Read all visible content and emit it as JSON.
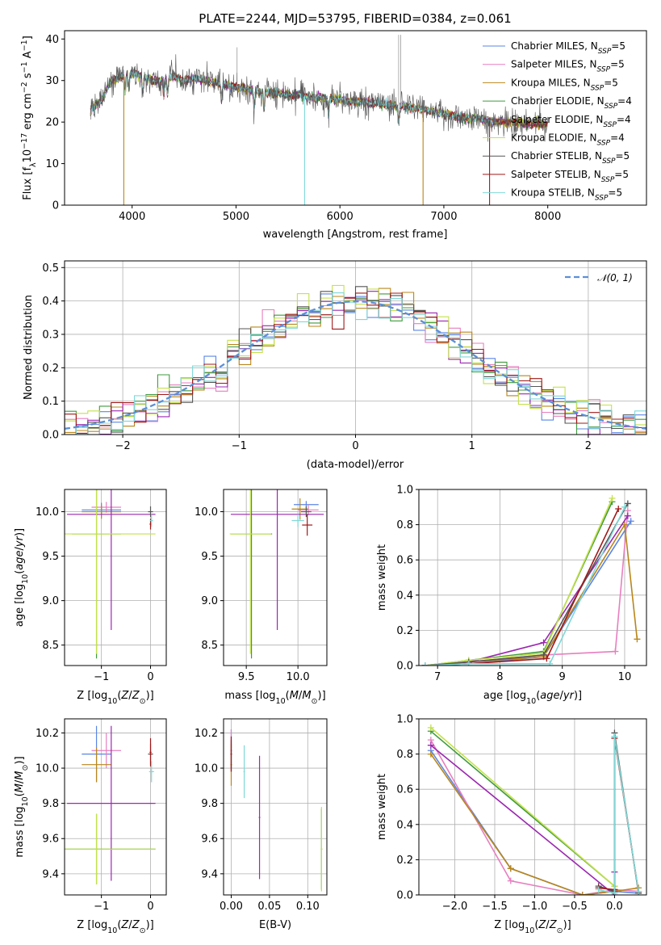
{
  "figure": {
    "title": "PLATE=2244, MJD=53795, FIBERID=0384, z=0.061"
  },
  "models": [
    {
      "name": "Chabrier MILES, N_SSP=5",
      "label_main": "Chabrier MILES, N",
      "label_sub": "SSP",
      "label_tail": "=5",
      "color": "#5b86e6"
    },
    {
      "name": "Salpeter MILES, N_SSP=5",
      "label_main": "Salpeter MILES, N",
      "label_sub": "SSP",
      "label_tail": "=5",
      "color": "#e77fc0"
    },
    {
      "name": "Kroupa MILES, N_SSP=5",
      "label_main": "Kroupa MILES, N",
      "label_sub": "SSP",
      "label_tail": "=5",
      "color": "#b8861a"
    },
    {
      "name": "Chabrier ELODIE, N_SSP=4",
      "label_main": "Chabrier ELODIE, N",
      "label_sub": "SSP",
      "label_tail": "=4",
      "color": "#3f9a3f"
    },
    {
      "name": "Salpeter ELODIE, N_SSP=4",
      "label_main": "Salpeter ELODIE, N",
      "label_sub": "SSP",
      "label_tail": "=4",
      "color": "#9b28b0"
    },
    {
      "name": "Kroupa ELODIE, N_SSP=4",
      "label_main": "Kroupa ELODIE, N",
      "label_sub": "SSP",
      "label_tail": "=4",
      "color": "#c4e24a"
    },
    {
      "name": "Chabrier STELIB, N_SSP=5",
      "label_main": "Chabrier STELIB, N",
      "label_sub": "SSP",
      "label_tail": "=5",
      "color": "#555555"
    },
    {
      "name": "Salpeter STELIB, N_SSP=5",
      "label_main": "Salpeter STELIB, N",
      "label_sub": "SSP",
      "label_tail": "=5",
      "color": "#a01818"
    },
    {
      "name": "Kroupa STELIB, N_SSP=5",
      "label_main": "Kroupa STELIB, N",
      "label_sub": "SSP",
      "label_tail": "=5",
      "color": "#7fd8d8"
    }
  ],
  "chart_data": [
    {
      "id": "spectrum",
      "type": "line",
      "title": "PLATE=2244, MJD=53795, FIBERID=0384, z=0.061",
      "xlabel": "wavelength [Angstrom, rest frame]",
      "ylabel": "Flux [f_λ 10^-17 erg cm^-2 s^-1 A^-1]",
      "xlim": [
        3350,
        8950
      ],
      "ylim": [
        0,
        42
      ],
      "xticks": [
        4000,
        5000,
        6000,
        7000,
        8000
      ],
      "yticks": [
        0,
        10,
        20,
        30,
        40
      ],
      "grid": false,
      "legend": "top-right",
      "continuum": [
        [
          3600,
          23
        ],
        [
          3700,
          25
        ],
        [
          3800,
          30
        ],
        [
          3900,
          31
        ],
        [
          4000,
          32
        ],
        [
          4100,
          31
        ],
        [
          4200,
          30
        ],
        [
          4300,
          30
        ],
        [
          4400,
          31
        ],
        [
          4500,
          30
        ],
        [
          4600,
          30.5
        ],
        [
          4700,
          30
        ],
        [
          4800,
          29.5
        ],
        [
          4900,
          29
        ],
        [
          5000,
          28.5
        ],
        [
          5100,
          28
        ],
        [
          5200,
          27.5
        ],
        [
          5300,
          27
        ],
        [
          5400,
          27
        ],
        [
          5500,
          26.5
        ],
        [
          5600,
          26.5
        ],
        [
          5700,
          26
        ],
        [
          5800,
          26
        ],
        [
          5900,
          25.5
        ],
        [
          6000,
          25.5
        ],
        [
          6100,
          25
        ],
        [
          6200,
          25
        ],
        [
          6300,
          24.5
        ],
        [
          6400,
          24.5
        ],
        [
          6500,
          24
        ],
        [
          6600,
          24
        ],
        [
          6700,
          23.5
        ],
        [
          6800,
          23
        ],
        [
          6900,
          22.5
        ],
        [
          7000,
          22
        ],
        [
          7100,
          21.5
        ],
        [
          7200,
          21
        ],
        [
          7300,
          21
        ],
        [
          7400,
          20.5
        ],
        [
          7500,
          20
        ],
        [
          7600,
          20
        ],
        [
          7700,
          20
        ],
        [
          7800,
          19.5
        ],
        [
          7900,
          19.5
        ],
        [
          8000,
          19.5
        ]
      ],
      "glitches": [
        {
          "x": 3920,
          "low": 0
        },
        {
          "x": 5660,
          "low": 0
        },
        {
          "x": 6800,
          "low": 0
        },
        {
          "x": 7440,
          "low": 0
        }
      ],
      "emission": [
        {
          "x": 6565,
          "high": 41
        },
        {
          "x": 6585,
          "high": 41
        },
        {
          "x": 5010,
          "high": 38
        }
      ]
    },
    {
      "id": "residuals",
      "type": "step-histogram",
      "xlabel": "(data-model)/error",
      "ylabel": "Normed distribution",
      "xlim": [
        -2.5,
        2.5
      ],
      "ylim": [
        0,
        0.52
      ],
      "xticks": [
        -2,
        -1,
        0,
        1,
        2
      ],
      "yticks": [
        0.0,
        0.1,
        0.2,
        0.3,
        0.4,
        0.5
      ],
      "grid": true,
      "legend": "top-right",
      "reference": {
        "name": "N(0,1)",
        "label": "𝒩(0, 1)",
        "color": "#5b8fd8",
        "mu": 0,
        "sigma": 1
      },
      "bin_width": 0.1
    },
    {
      "id": "age-vs-Z",
      "type": "errorbar",
      "xlabel": "Z [log10(Z/Z_sun)]",
      "ylabel": "age  [log10(age/yr)]",
      "xlim": [
        -1.75,
        0.32
      ],
      "ylim": [
        8.27,
        10.25
      ],
      "xticks": [
        -1,
        0
      ],
      "yticks": [
        8.5,
        9.0,
        9.5,
        10.0
      ],
      "grid": true,
      "points": [
        {
          "model": 0,
          "x": -1.0,
          "y": 10.02,
          "xerr": 0.4,
          "yerr": 0.08
        },
        {
          "model": 1,
          "x": -0.9,
          "y": 10.05,
          "xerr": 0.3,
          "yerr": 0.06
        },
        {
          "model": 2,
          "x": -1.0,
          "y": 10.0,
          "xerr": 0.4,
          "yerr": 0.08
        },
        {
          "model": 3,
          "x": -1.1,
          "y": 9.75,
          "xerr": 0.5,
          "yerr": 1.4
        },
        {
          "model": 4,
          "x": -0.8,
          "y": 9.97,
          "xerr": 0.9,
          "yerr": 1.3
        },
        {
          "model": 5,
          "x": -1.1,
          "y": 9.75,
          "xerr": 1.2,
          "yerr": 1.35
        },
        {
          "model": 6,
          "x": 0.0,
          "y": 10.0,
          "xerr": 0.05,
          "yerr": 0.06
        },
        {
          "model": 7,
          "x": 0.0,
          "y": 9.86,
          "xerr": 0.02,
          "yerr": 0.06
        },
        {
          "model": 8,
          "x": 0.02,
          "y": 9.9,
          "xerr": 0.03,
          "yerr": 0.07
        }
      ]
    },
    {
      "id": "age-vs-mass",
      "type": "errorbar",
      "xlabel": "mass [log10(M/M_sun)]",
      "ylabel": "",
      "xlim": [
        9.28,
        10.28
      ],
      "ylim": [
        8.27,
        10.25
      ],
      "xticks": [
        9.5,
        10.0
      ],
      "yticks": [
        8.5,
        9.0,
        9.5,
        10.0
      ],
      "grid": true,
      "points": [
        {
          "model": 0,
          "x": 10.08,
          "y": 10.08,
          "xerr": 0.12,
          "yerr": 0.04
        },
        {
          "model": 1,
          "x": 10.1,
          "y": 10.02,
          "xerr": 0.1,
          "yerr": 0.06
        },
        {
          "model": 2,
          "x": 10.02,
          "y": 10.03,
          "xerr": 0.08,
          "yerr": 0.12
        },
        {
          "model": 3,
          "x": 9.55,
          "y": 9.75,
          "xerr": 0.2,
          "yerr": 1.4
        },
        {
          "model": 4,
          "x": 9.8,
          "y": 9.97,
          "xerr": 0.45,
          "yerr": 1.3
        },
        {
          "model": 5,
          "x": 9.54,
          "y": 9.75,
          "xerr": 0.2,
          "yerr": 1.35
        },
        {
          "model": 6,
          "x": 10.08,
          "y": 10.0,
          "xerr": 0.05,
          "yerr": 0.06
        },
        {
          "model": 7,
          "x": 10.09,
          "y": 9.85,
          "xerr": 0.05,
          "yerr": 0.12
        },
        {
          "model": 8,
          "x": 10.0,
          "y": 9.9,
          "xerr": 0.06,
          "yerr": 0.07
        }
      ]
    },
    {
      "id": "massweight-vs-age",
      "type": "line",
      "xlabel": "age  [log10(age/yr)]",
      "ylabel": "mass weight",
      "xlim": [
        6.7,
        10.35
      ],
      "ylim": [
        0,
        1.0
      ],
      "xticks": [
        7,
        8,
        9,
        10
      ],
      "yticks": [
        0.0,
        0.2,
        0.4,
        0.6,
        0.8,
        1.0
      ],
      "grid": true,
      "series": [
        {
          "model": 0,
          "x": [
            6.8,
            7.5,
            8.7,
            10.1
          ],
          "y": [
            0.0,
            0.01,
            0.05,
            0.82
          ]
        },
        {
          "model": 1,
          "x": [
            6.8,
            7.5,
            8.7,
            9.85,
            10.05
          ],
          "y": [
            0.0,
            0.02,
            0.06,
            0.08,
            0.88
          ]
        },
        {
          "model": 2,
          "x": [
            6.8,
            7.5,
            8.7,
            10.0,
            10.2
          ],
          "y": [
            0.0,
            0.02,
            0.05,
            0.8,
            0.15
          ]
        },
        {
          "model": 3,
          "x": [
            6.8,
            7.5,
            8.7,
            9.8
          ],
          "y": [
            0.0,
            0.03,
            0.08,
            0.93
          ]
        },
        {
          "model": 4,
          "x": [
            6.8,
            7.5,
            8.7,
            10.05
          ],
          "y": [
            0.0,
            0.02,
            0.13,
            0.85
          ]
        },
        {
          "model": 5,
          "x": [
            6.8,
            7.5,
            8.7,
            9.8
          ],
          "y": [
            0.0,
            0.03,
            0.07,
            0.95
          ]
        },
        {
          "model": 6,
          "x": [
            6.8,
            7.5,
            8.7,
            10.05
          ],
          "y": [
            0.0,
            0.02,
            0.06,
            0.92
          ]
        },
        {
          "model": 7,
          "x": [
            6.8,
            7.5,
            8.75,
            9.9
          ],
          "y": [
            0.0,
            0.01,
            0.04,
            0.89
          ]
        },
        {
          "model": 8,
          "x": [
            6.8,
            7.5,
            8.8,
            10.0
          ],
          "y": [
            0.0,
            0.01,
            0.01,
            0.9
          ]
        }
      ]
    },
    {
      "id": "mass-vs-Z",
      "type": "errorbar",
      "xlabel": "Z [log10(Z/Z_sun)]",
      "ylabel": "mass [log10(M/M_sun)]",
      "xlim": [
        -1.75,
        0.32
      ],
      "ylim": [
        9.28,
        10.28
      ],
      "xticks": [
        -1,
        0
      ],
      "yticks": [
        9.4,
        9.6,
        9.8,
        10.0,
        10.2
      ],
      "grid": true,
      "points": [
        {
          "model": 0,
          "x": -1.1,
          "y": 10.08,
          "xerr": 0.3,
          "yerr": 0.16
        },
        {
          "model": 1,
          "x": -0.9,
          "y": 10.1,
          "xerr": 0.3,
          "yerr": 0.1
        },
        {
          "model": 2,
          "x": -1.1,
          "y": 10.02,
          "xerr": 0.3,
          "yerr": 0.1
        },
        {
          "model": 3,
          "x": -1.1,
          "y": 9.54,
          "xerr": 1.2,
          "yerr": 0.2
        },
        {
          "model": 4,
          "x": -0.8,
          "y": 9.8,
          "xerr": 0.9,
          "yerr": 0.44
        },
        {
          "model": 5,
          "x": -1.1,
          "y": 9.54,
          "xerr": 1.2,
          "yerr": 0.2
        },
        {
          "model": 6,
          "x": 0.0,
          "y": 10.08,
          "xerr": 0.05,
          "yerr": 0.06
        },
        {
          "model": 7,
          "x": 0.0,
          "y": 10.09,
          "xerr": 0.02,
          "yerr": 0.08
        },
        {
          "model": 8,
          "x": 0.02,
          "y": 9.98,
          "xerr": 0.05,
          "yerr": 0.06
        }
      ]
    },
    {
      "id": "mass-vs-EBV",
      "type": "errorbar",
      "xlabel": "E(B-V)",
      "ylabel": "",
      "xlim": [
        -0.01,
        0.125
      ],
      "ylim": [
        9.28,
        10.28
      ],
      "xticks": [
        0.0,
        0.05,
        0.1
      ],
      "yticks": [
        9.4,
        9.6,
        9.8,
        10.0,
        10.2
      ],
      "grid": true,
      "points": [
        {
          "model": 0,
          "x": 0.0,
          "y": 10.1,
          "xerr": 0.001,
          "yerr": 0.12
        },
        {
          "model": 1,
          "x": 0.0,
          "y": 10.1,
          "xerr": 0.001,
          "yerr": 0.12
        },
        {
          "model": 2,
          "x": 0.0,
          "y": 10.02,
          "xerr": 0.001,
          "yerr": 0.12
        },
        {
          "model": 3,
          "x": 0.118,
          "y": 9.54,
          "xerr": 0.001,
          "yerr": 0.23
        },
        {
          "model": 4,
          "x": 0.037,
          "y": 9.72,
          "xerr": 0.001,
          "yerr": 0.35
        },
        {
          "model": 5,
          "x": 0.118,
          "y": 9.54,
          "xerr": 0.001,
          "yerr": 0.24
        },
        {
          "model": 6,
          "x": 0.0,
          "y": 10.08,
          "xerr": 0.001,
          "yerr": 0.08
        },
        {
          "model": 7,
          "x": 0.0,
          "y": 10.08,
          "xerr": 0.001,
          "yerr": 0.1
        },
        {
          "model": 8,
          "x": 0.017,
          "y": 9.98,
          "xerr": 0.001,
          "yerr": 0.15
        }
      ]
    },
    {
      "id": "massweight-vs-Z",
      "type": "line",
      "xlabel": "Z [log10(Z/Z_sun)]",
      "ylabel": "mass weight",
      "xlim": [
        -2.45,
        0.4
      ],
      "ylim": [
        0,
        1.0
      ],
      "xticks": [
        -2.0,
        -1.5,
        -1.0,
        -0.5,
        0.0
      ],
      "yticks": [
        0.0,
        0.2,
        0.4,
        0.6,
        0.8,
        1.0
      ],
      "grid": true,
      "series": [
        {
          "model": 0,
          "x": [
            -2.3,
            -1.3,
            -0.4,
            0.0,
            0.3
          ],
          "y": [
            0.82,
            0.15,
            0.0,
            0.02,
            0.01
          ]
        },
        {
          "model": 1,
          "x": [
            -2.3,
            -1.3,
            -0.4,
            0.0,
            0.3
          ],
          "y": [
            0.88,
            0.08,
            0.0,
            0.03,
            0.02
          ]
        },
        {
          "model": 2,
          "x": [
            -2.3,
            -1.3,
            -0.4,
            0.0,
            0.3
          ],
          "y": [
            0.8,
            0.15,
            0.0,
            0.02,
            0.04
          ]
        },
        {
          "model": 3,
          "x": [
            -2.3,
            0.0
          ],
          "y": [
            0.93,
            0.05
          ]
        },
        {
          "model": 4,
          "x": [
            -2.3,
            0.0,
            0.0
          ],
          "y": [
            0.85,
            0.0,
            0.13
          ]
        },
        {
          "model": 5,
          "x": [
            -2.3,
            0.0
          ],
          "y": [
            0.95,
            0.05
          ]
        },
        {
          "model": 6,
          "x": [
            -0.2,
            0.0,
            0.0,
            0.3
          ],
          "y": [
            0.05,
            0.02,
            0.92,
            0.01
          ]
        },
        {
          "model": 7,
          "x": [
            -0.2,
            0.0,
            0.0,
            0.3
          ],
          "y": [
            0.04,
            0.03,
            0.89,
            0.02
          ]
        },
        {
          "model": 8,
          "x": [
            -0.2,
            0.0,
            0.0,
            0.3
          ],
          "y": [
            0.03,
            0.01,
            0.9,
            0.02
          ]
        }
      ]
    }
  ]
}
